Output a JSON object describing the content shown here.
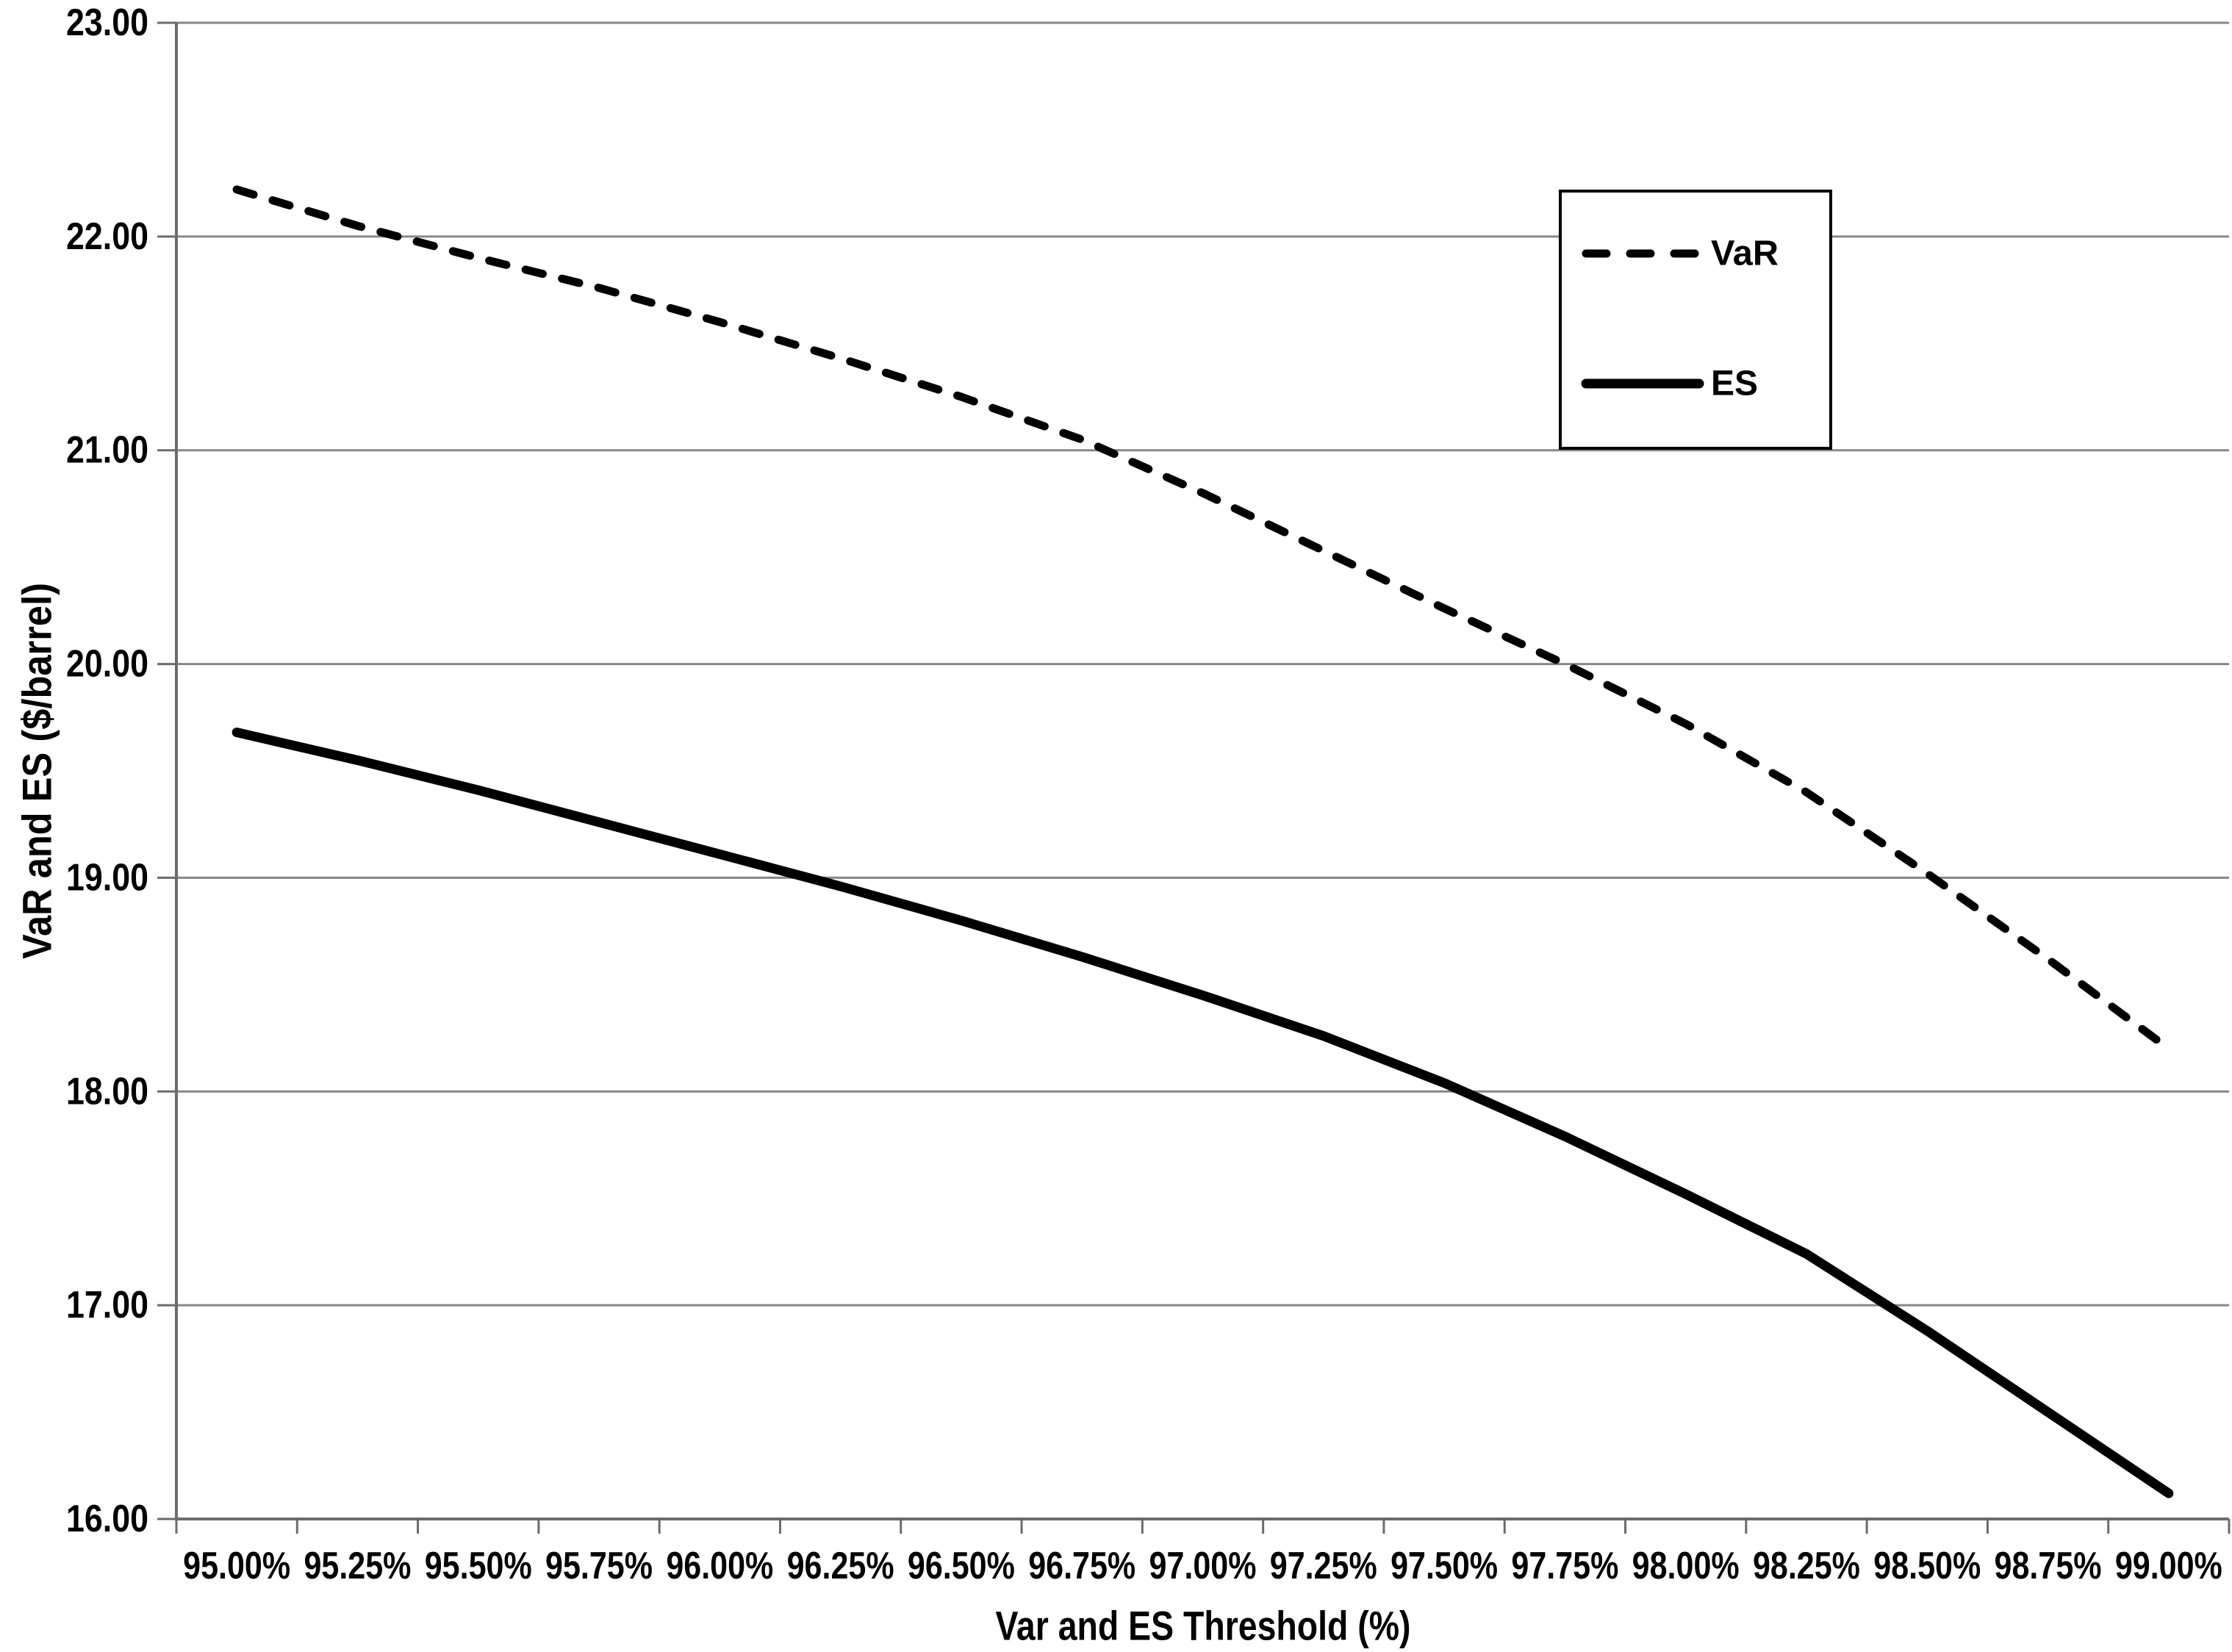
{
  "chart_data": {
    "type": "line",
    "title": "",
    "xlabel": "Var and ES Threshold (%)",
    "ylabel": "VaR and ES ($/barrel)",
    "categories": [
      "95.00%",
      "95.25%",
      "95.50%",
      "95.75%",
      "96.00%",
      "96.25%",
      "96.50%",
      "96.75%",
      "97.00%",
      "97.25%",
      "97.50%",
      "97.75%",
      "98.00%",
      "98.25%",
      "98.50%",
      "98.75%",
      "99.00%"
    ],
    "series": [
      {
        "name": "VaR",
        "style": "dashed",
        "color": "#000000",
        "values": [
          22.22,
          22.05,
          21.9,
          21.76,
          21.6,
          21.43,
          21.25,
          21.05,
          20.8,
          20.53,
          20.26,
          20.0,
          19.72,
          19.4,
          19.02,
          18.62,
          18.2
        ]
      },
      {
        "name": "ES",
        "style": "solid",
        "color": "#000000",
        "values": [
          19.68,
          19.55,
          19.41,
          19.26,
          19.11,
          18.96,
          18.8,
          18.63,
          18.45,
          18.26,
          18.04,
          17.79,
          17.52,
          17.24,
          16.88,
          16.5,
          16.12
        ]
      }
    ],
    "ylim": [
      16,
      23
    ],
    "ytick_step": 1,
    "ytick_decimals": 2,
    "grid": "horizontal",
    "legend_position": "top-right-inside",
    "gridline_color": "#878787",
    "axis_color": "#6b6b6b",
    "text_color": "#000000",
    "background_color": "#ffffff",
    "series_color": "#000000"
  }
}
